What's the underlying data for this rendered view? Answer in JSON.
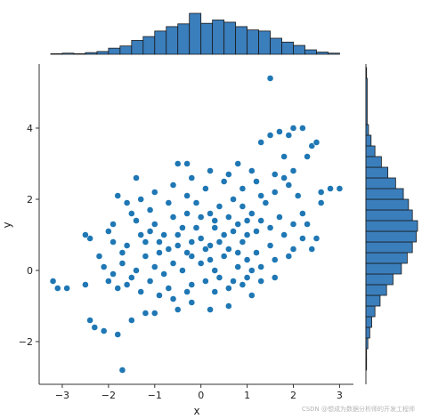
{
  "chart_data": {
    "type": "scatter",
    "title": "",
    "xlabel": "x",
    "ylabel": "y",
    "xlim": [
      -3.5,
      3.3
    ],
    "ylim": [
      -3.2,
      5.8
    ],
    "xticks": [
      -3,
      -2,
      -1,
      0,
      1,
      2,
      3
    ],
    "yticks": [
      -2,
      0,
      2,
      4
    ],
    "grid": false,
    "marginals": {
      "top": {
        "type": "histogram",
        "bin_edges": [
          -3.25,
          -3.0,
          -2.75,
          -2.5,
          -2.25,
          -2.0,
          -1.75,
          -1.5,
          -1.25,
          -1.0,
          -0.75,
          -0.5,
          -0.25,
          0.0,
          0.25,
          0.5,
          0.75,
          1.0,
          1.25,
          1.5,
          1.75,
          2.0,
          2.25,
          2.5,
          2.75,
          3.0
        ],
        "counts": [
          1,
          2,
          1,
          3,
          5,
          11,
          15,
          25,
          32,
          42,
          50,
          55,
          74,
          56,
          62,
          58,
          50,
          44,
          42,
          29,
          22,
          16,
          8,
          4,
          2
        ]
      },
      "right": {
        "type": "histogram",
        "bin_edges": [
          -2.8,
          -2.5,
          -2.2,
          -1.9,
          -1.6,
          -1.3,
          -1.0,
          -0.7,
          -0.4,
          -0.1,
          0.2,
          0.5,
          0.8,
          1.1,
          1.4,
          1.7,
          2.0,
          2.3,
          2.6,
          2.9,
          3.2,
          3.5,
          3.8,
          4.1,
          5.4,
          5.7
        ],
        "counts": [
          1,
          1,
          3,
          6,
          9,
          14,
          22,
          32,
          42,
          55,
          64,
          72,
          78,
          80,
          72,
          66,
          58,
          46,
          34,
          24,
          14,
          8,
          4,
          2,
          1
        ]
      }
    },
    "series": [
      {
        "points": [
          [
            -1.7,
            -2.8
          ],
          [
            1.5,
            5.4
          ],
          [
            -3.2,
            -0.3
          ],
          [
            -3.1,
            -0.5
          ],
          [
            -2.9,
            -0.5
          ],
          [
            -2.5,
            -0.4
          ],
          [
            -2.4,
            -1.4
          ],
          [
            -2.3,
            -1.6
          ],
          [
            -2.4,
            0.9
          ],
          [
            -2.5,
            1.0
          ],
          [
            -2.0,
            1.1
          ],
          [
            -1.9,
            1.3
          ],
          [
            -1.8,
            -1.8
          ],
          [
            -2.1,
            -1.7
          ],
          [
            -1.5,
            -1.4
          ],
          [
            -1.2,
            -1.2
          ],
          [
            -1.0,
            -1.2
          ],
          [
            -0.5,
            -1.1
          ],
          [
            -0.2,
            -0.9
          ],
          [
            0.2,
            -1.1
          ],
          [
            0.6,
            -1.0
          ],
          [
            1.1,
            -0.7
          ],
          [
            1.3,
            -0.3
          ],
          [
            1.6,
            -0.2
          ],
          [
            2.0,
            0.6
          ],
          [
            2.4,
            0.6
          ],
          [
            2.5,
            0.9
          ],
          [
            2.6,
            1.9
          ],
          [
            2.6,
            2.2
          ],
          [
            2.8,
            2.3
          ],
          [
            3.0,
            2.3
          ],
          [
            2.3,
            3.2
          ],
          [
            2.4,
            3.5
          ],
          [
            2.5,
            3.6
          ],
          [
            2.2,
            4.0
          ],
          [
            2.0,
            4.0
          ],
          [
            1.9,
            3.8
          ],
          [
            1.8,
            3.2
          ],
          [
            1.5,
            3.8
          ],
          [
            1.7,
            3.9
          ],
          [
            1.3,
            3.6
          ],
          [
            0.8,
            3.0
          ],
          [
            -0.3,
            3.0
          ],
          [
            -0.5,
            3.0
          ],
          [
            -1.4,
            2.6
          ],
          [
            -1.8,
            2.1
          ],
          [
            -1.6,
            1.9
          ],
          [
            -2.2,
            0.4
          ],
          [
            -2.0,
            -0.3
          ],
          [
            -1.8,
            -0.5
          ],
          [
            -1.5,
            -0.2
          ],
          [
            -1.1,
            -0.3
          ],
          [
            -0.7,
            -0.5
          ],
          [
            -0.3,
            -0.6
          ],
          [
            0.1,
            -0.3
          ],
          [
            0.4,
            -0.2
          ],
          [
            0.8,
            0.1
          ],
          [
            1.0,
            0.3
          ],
          [
            1.2,
            0.5
          ],
          [
            1.5,
            0.7
          ],
          [
            1.8,
            1.0
          ],
          [
            2.0,
            1.3
          ],
          [
            2.2,
            1.6
          ],
          [
            2.1,
            2.1
          ],
          [
            1.9,
            2.4
          ],
          [
            1.6,
            2.7
          ],
          [
            1.2,
            2.5
          ],
          [
            0.9,
            2.3
          ],
          [
            0.5,
            2.5
          ],
          [
            0.1,
            2.3
          ],
          [
            -0.3,
            2.1
          ],
          [
            -0.7,
            1.9
          ],
          [
            -1.1,
            1.7
          ],
          [
            -1.4,
            1.4
          ],
          [
            -1.2,
            0.8
          ],
          [
            -0.9,
            0.5
          ],
          [
            -0.6,
            0.2
          ],
          [
            -0.2,
            0.4
          ],
          [
            0.2,
            0.7
          ],
          [
            0.5,
            1.0
          ],
          [
            0.8,
            1.3
          ],
          [
            1.1,
            1.6
          ],
          [
            1.4,
            1.9
          ],
          [
            1.0,
            1.0
          ],
          [
            0.6,
            0.6
          ],
          [
            0.3,
            1.2
          ],
          [
            0.0,
            1.5
          ],
          [
            -0.4,
            1.2
          ],
          [
            -0.8,
            1.0
          ],
          [
            -0.5,
            0.7
          ],
          [
            0.0,
            0.9
          ],
          [
            0.4,
            1.8
          ],
          [
            0.7,
            2.0
          ],
          [
            -0.1,
            1.9
          ],
          [
            -0.6,
            1.5
          ],
          [
            -1.0,
            1.3
          ],
          [
            -1.3,
            1.0
          ],
          [
            -1.6,
            0.7
          ],
          [
            -1.7,
            0.2
          ],
          [
            -1.4,
            0.0
          ],
          [
            -1.0,
            0.1
          ],
          [
            -0.8,
            -0.1
          ],
          [
            -0.4,
            0.0
          ],
          [
            0.0,
            0.2
          ],
          [
            0.3,
            0.0
          ],
          [
            0.7,
            -0.3
          ],
          [
            1.0,
            -0.2
          ],
          [
            1.3,
            0.1
          ],
          [
            1.6,
            0.3
          ],
          [
            1.9,
            0.4
          ],
          [
            2.2,
            0.9
          ],
          [
            2.3,
            1.3
          ],
          [
            1.7,
            1.5
          ],
          [
            1.5,
            1.2
          ],
          [
            1.2,
            1.1
          ],
          [
            0.9,
            0.8
          ],
          [
            0.5,
            0.4
          ],
          [
            0.2,
            0.3
          ],
          [
            -0.2,
            0.8
          ],
          [
            -0.3,
            1.6
          ],
          [
            0.2,
            1.6
          ],
          [
            0.6,
            1.5
          ],
          [
            0.9,
            1.8
          ],
          [
            1.3,
            2.1
          ],
          [
            1.6,
            2.2
          ],
          [
            1.8,
            2.6
          ],
          [
            2.0,
            2.8
          ],
          [
            1.1,
            2.8
          ],
          [
            0.6,
            2.7
          ],
          [
            0.2,
            2.8
          ],
          [
            -0.2,
            2.6
          ],
          [
            -0.6,
            2.4
          ],
          [
            -1.0,
            2.2
          ],
          [
            -1.3,
            2.0
          ],
          [
            -1.5,
            1.6
          ],
          [
            -1.9,
            0.8
          ],
          [
            -1.7,
            0.5
          ],
          [
            -2.1,
            0.1
          ],
          [
            -1.9,
            -0.1
          ],
          [
            -1.6,
            -0.4
          ],
          [
            -1.3,
            -0.6
          ],
          [
            -0.9,
            -0.7
          ],
          [
            -0.6,
            -0.8
          ],
          [
            -0.2,
            -0.4
          ],
          [
            0.3,
            -0.6
          ],
          [
            0.6,
            -0.5
          ],
          [
            0.9,
            -0.4
          ],
          [
            1.1,
            0.0
          ],
          [
            -1.2,
            0.4
          ],
          [
            -0.7,
            0.6
          ],
          [
            -0.3,
            0.5
          ],
          [
            0.1,
            0.6
          ],
          [
            0.4,
            0.8
          ],
          [
            0.7,
            1.1
          ],
          [
            1.0,
            1.4
          ],
          [
            1.3,
            1.4
          ],
          [
            0.8,
            0.5
          ],
          [
            0.3,
            1.4
          ],
          [
            -0.1,
            1.2
          ],
          [
            -0.5,
            1.0
          ],
          [
            -0.9,
            0.8
          ],
          [
            -1.1,
            1.1
          ]
        ]
      }
    ]
  },
  "colors": {
    "marker": "#1f77b4",
    "marker_edge": "#ffffff",
    "bar_fill": "#3b7ebc",
    "bar_edge": "#1a1a1a",
    "axis": "#333333"
  },
  "watermark": "CSDN @想成为数据分析师的开发工程师"
}
